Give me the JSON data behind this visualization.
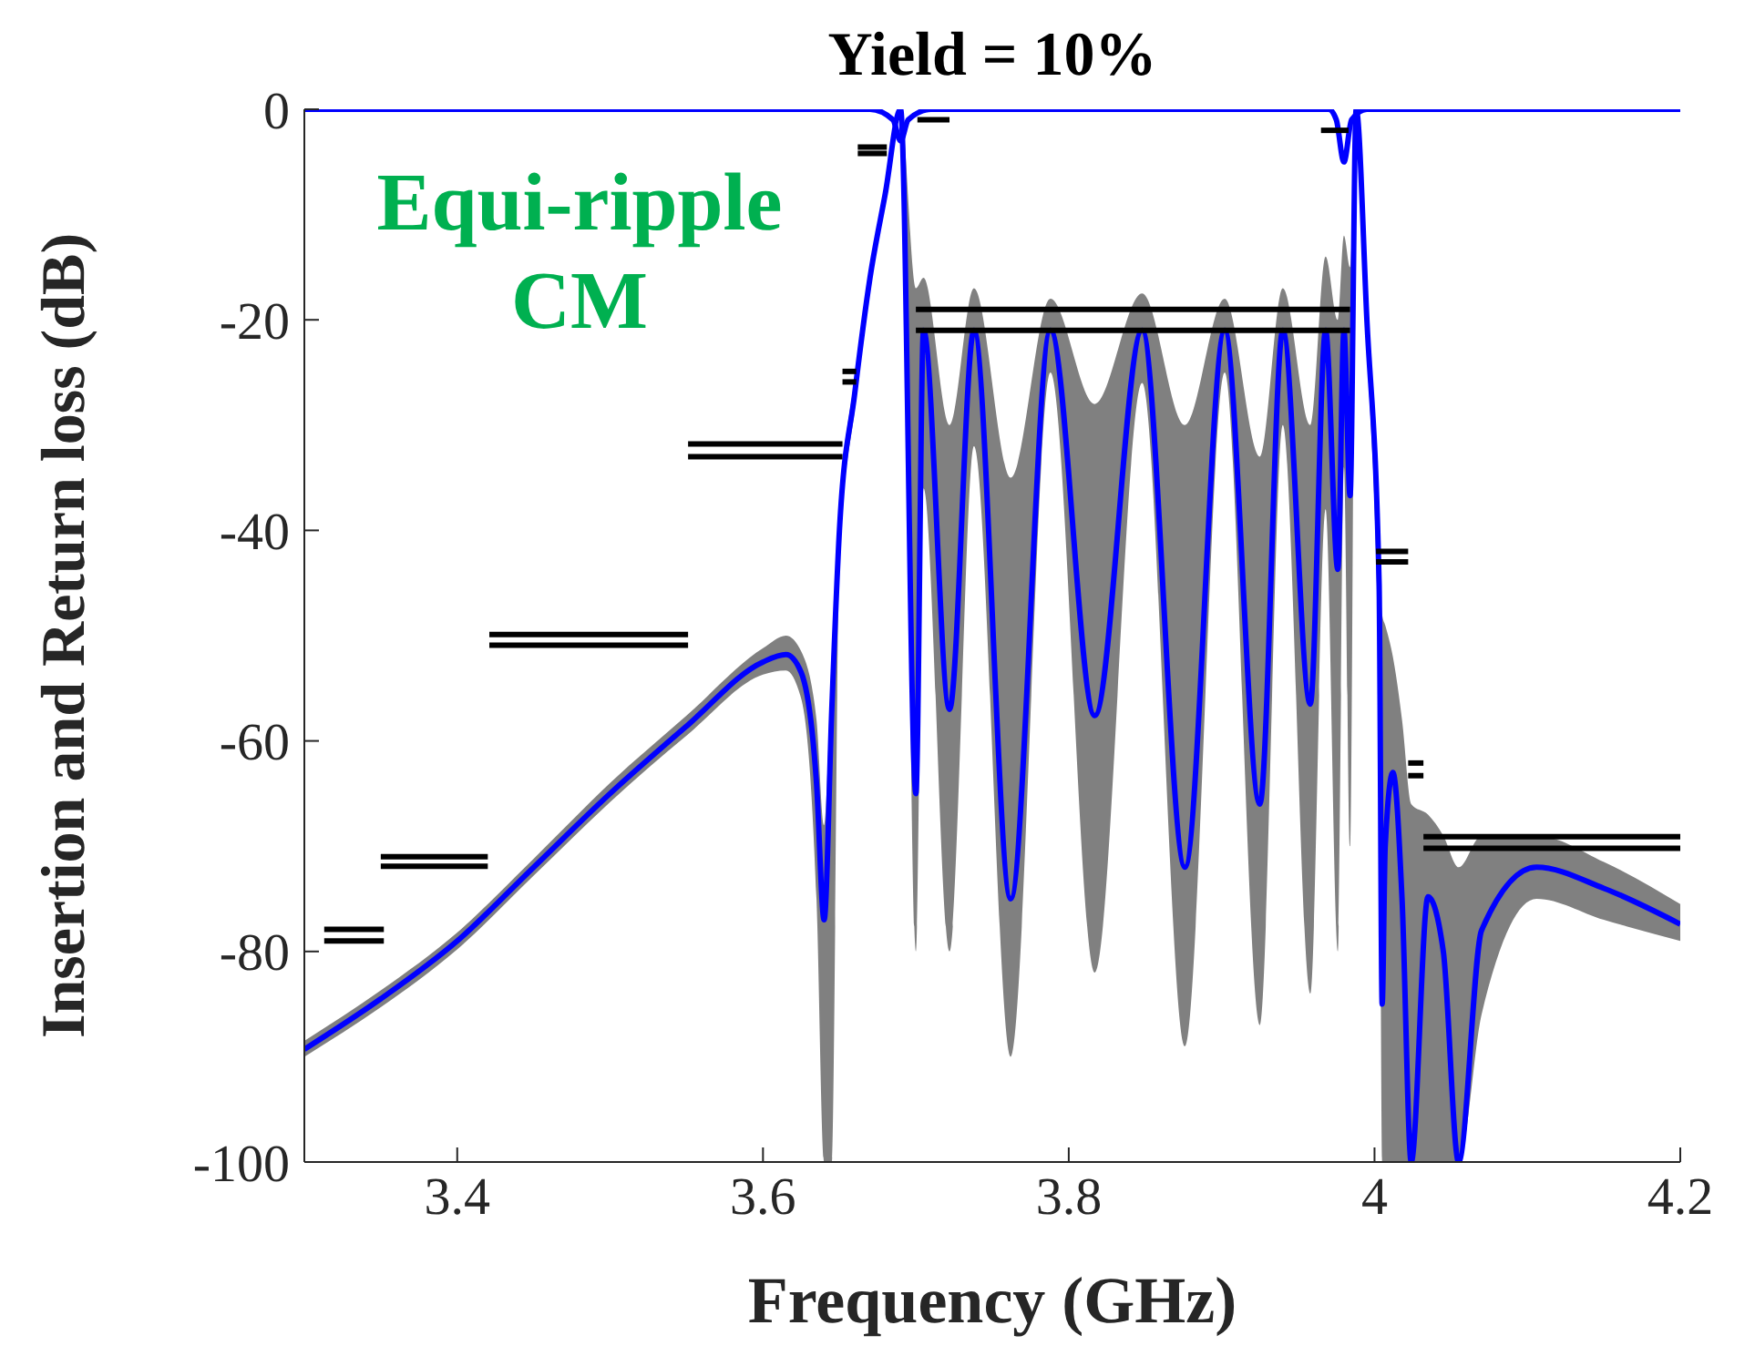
{
  "chart_data": {
    "type": "line",
    "title": "Yield = 10%",
    "xlabel": "Frequency (GHz)",
    "ylabel": "Insertion and Return loss (dB)",
    "annotations": [
      "Equi-ripple CM"
    ],
    "xlim": [
      3.3,
      4.2
    ],
    "xticks": [
      3.4,
      3.6,
      3.8,
      4,
      4.2
    ],
    "ylim": [
      -100,
      0
    ],
    "yticks": [
      0,
      -20,
      -40,
      -60,
      -80,
      -100
    ],
    "grid": false,
    "legend": false,
    "series": [
      {
        "color": "#0000ff",
        "x": [
          3.3,
          3.35,
          3.4,
          3.45,
          3.5,
          3.55,
          3.6,
          3.615,
          3.625,
          3.635,
          3.64,
          3.645,
          3.65,
          3.66,
          3.67,
          3.68,
          3.69,
          3.7,
          3.705,
          3.722,
          3.738,
          3.762,
          3.788,
          3.817,
          3.848,
          3.876,
          3.902,
          3.925,
          3.94,
          3.958,
          3.968,
          3.976,
          3.98,
          3.984,
          3.988,
          3.995,
          4.003,
          4.005,
          4.007,
          4.012,
          4.018,
          4.024,
          4.035,
          4.045,
          4.055,
          4.07,
          4.106,
          4.15,
          4.2
        ],
        "values": [
          -89.3,
          -84.5,
          -79,
          -72,
          -65,
          -58.6,
          -52.5,
          -51.8,
          -53.5,
          -64,
          -77,
          -57,
          -40,
          -27,
          -16,
          -8,
          0,
          -65,
          -21,
          -57,
          -21,
          -75,
          -21,
          -57.6,
          -21,
          -72,
          -21,
          -66,
          -21,
          -56.5,
          -21,
          -43.7,
          -21,
          -36.7,
          0,
          -20,
          -45,
          -85,
          -70,
          -63,
          -75,
          -100,
          -74.8,
          -80,
          -100,
          -78,
          -72,
          -74,
          -77.4
        ],
        "lower": [
          -90,
          -85.3,
          -79.8,
          -72.8,
          -65.8,
          -59.5,
          -53.7,
          -53.3,
          -56,
          -75,
          -100,
          -100,
          -42,
          -28.5,
          -17,
          -8.5,
          0,
          -80,
          -36,
          -80,
          -32,
          -90,
          -25,
          -82,
          -26,
          -89,
          -25,
          -87,
          -30,
          -84,
          -38,
          -80,
          -34,
          -70,
          0,
          -22,
          -55,
          -100,
          -100,
          -100,
          -100,
          -100,
          -100,
          -100,
          -100,
          -86,
          -75,
          -77,
          -79
        ],
        "upper": [
          -88.5,
          -83.7,
          -78.2,
          -71.2,
          -64,
          -57.6,
          -51.2,
          -50,
          -51.5,
          -58,
          -68,
          -52,
          -38,
          -25.5,
          -15,
          -7.5,
          0,
          -17,
          -16,
          -30,
          -17,
          -35,
          -18,
          -28,
          -17.5,
          -30,
          -18,
          -33,
          -17,
          -30,
          -14,
          -20,
          -12,
          -15,
          0,
          -18,
          -42,
          -48,
          -49,
          -52,
          -58,
          -66,
          -67,
          -69,
          -72,
          -69,
          -69,
          -71.5,
          -75.5
        ]
      },
      {
        "color": "#0000ff",
        "x": [
          3.3,
          3.67,
          3.685,
          3.69,
          3.695,
          3.71,
          3.97,
          3.975,
          3.98,
          3.985,
          3.995,
          4.2
        ],
        "values": [
          0,
          0,
          -1,
          -3,
          -1,
          0,
          0,
          -1,
          -5,
          -1,
          0,
          0
        ]
      },
      {
        "color": "#000000",
        "x": [
          3.313,
          3.352
        ],
        "values": [
          -77.9,
          -77.9
        ]
      },
      {
        "color": "#000000",
        "x": [
          3.313,
          3.352
        ],
        "values": [
          -79,
          -79
        ]
      },
      {
        "color": "#000000",
        "x": [
          3.35,
          3.42
        ],
        "values": [
          -71,
          -71
        ]
      },
      {
        "color": "#000000",
        "x": [
          3.35,
          3.42
        ],
        "values": [
          -71.9,
          -71.9
        ]
      },
      {
        "color": "#000000",
        "x": [
          3.421,
          3.551
        ],
        "values": [
          -49.9,
          -49.9
        ]
      },
      {
        "color": "#000000",
        "x": [
          3.421,
          3.551
        ],
        "values": [
          -50.9,
          -50.9
        ]
      },
      {
        "color": "#000000",
        "x": [
          3.551,
          3.652
        ],
        "values": [
          -31.8,
          -31.8
        ]
      },
      {
        "color": "#000000",
        "x": [
          3.551,
          3.652
        ],
        "values": [
          -33,
          -33
        ]
      },
      {
        "color": "#000000",
        "x": [
          3.652,
          3.661
        ],
        "values": [
          -24.9,
          -24.9
        ]
      },
      {
        "color": "#000000",
        "x": [
          3.652,
          3.661
        ],
        "values": [
          -25.9,
          -25.9
        ]
      },
      {
        "color": "#000000",
        "x": [
          3.662,
          3.681
        ],
        "values": [
          -3.6,
          -3.6
        ]
      },
      {
        "color": "#000000",
        "x": [
          3.662,
          3.681
        ],
        "values": [
          -4.2,
          -4.2
        ]
      },
      {
        "color": "#000000",
        "x": [
          3.701,
          3.722
        ],
        "values": [
          -1,
          -1
        ]
      },
      {
        "color": "#000000",
        "x": [
          3.7,
          3.984
        ],
        "values": [
          -19,
          -19
        ]
      },
      {
        "color": "#000000",
        "x": [
          3.7,
          3.984
        ],
        "values": [
          -21,
          -21
        ]
      },
      {
        "color": "#000000",
        "x": [
          3.965,
          3.983
        ],
        "values": [
          -2,
          -2
        ]
      },
      {
        "color": "#000000",
        "x": [
          4.001,
          4.022
        ],
        "values": [
          -42,
          -42
        ]
      },
      {
        "color": "#000000",
        "x": [
          4.001,
          4.022
        ],
        "values": [
          -43,
          -43
        ]
      },
      {
        "color": "#000000",
        "x": [
          4.022,
          4.032
        ],
        "values": [
          -62.1,
          -62.1
        ]
      },
      {
        "color": "#000000",
        "x": [
          4.022,
          4.032
        ],
        "values": [
          -63.3,
          -63.3
        ]
      },
      {
        "color": "#000000",
        "x": [
          4.032,
          4.2
        ],
        "values": [
          -69.1,
          -69.1
        ]
      },
      {
        "color": "#000000",
        "x": [
          4.032,
          4.2
        ],
        "values": [
          -70.2,
          -70.2
        ]
      }
    ]
  }
}
